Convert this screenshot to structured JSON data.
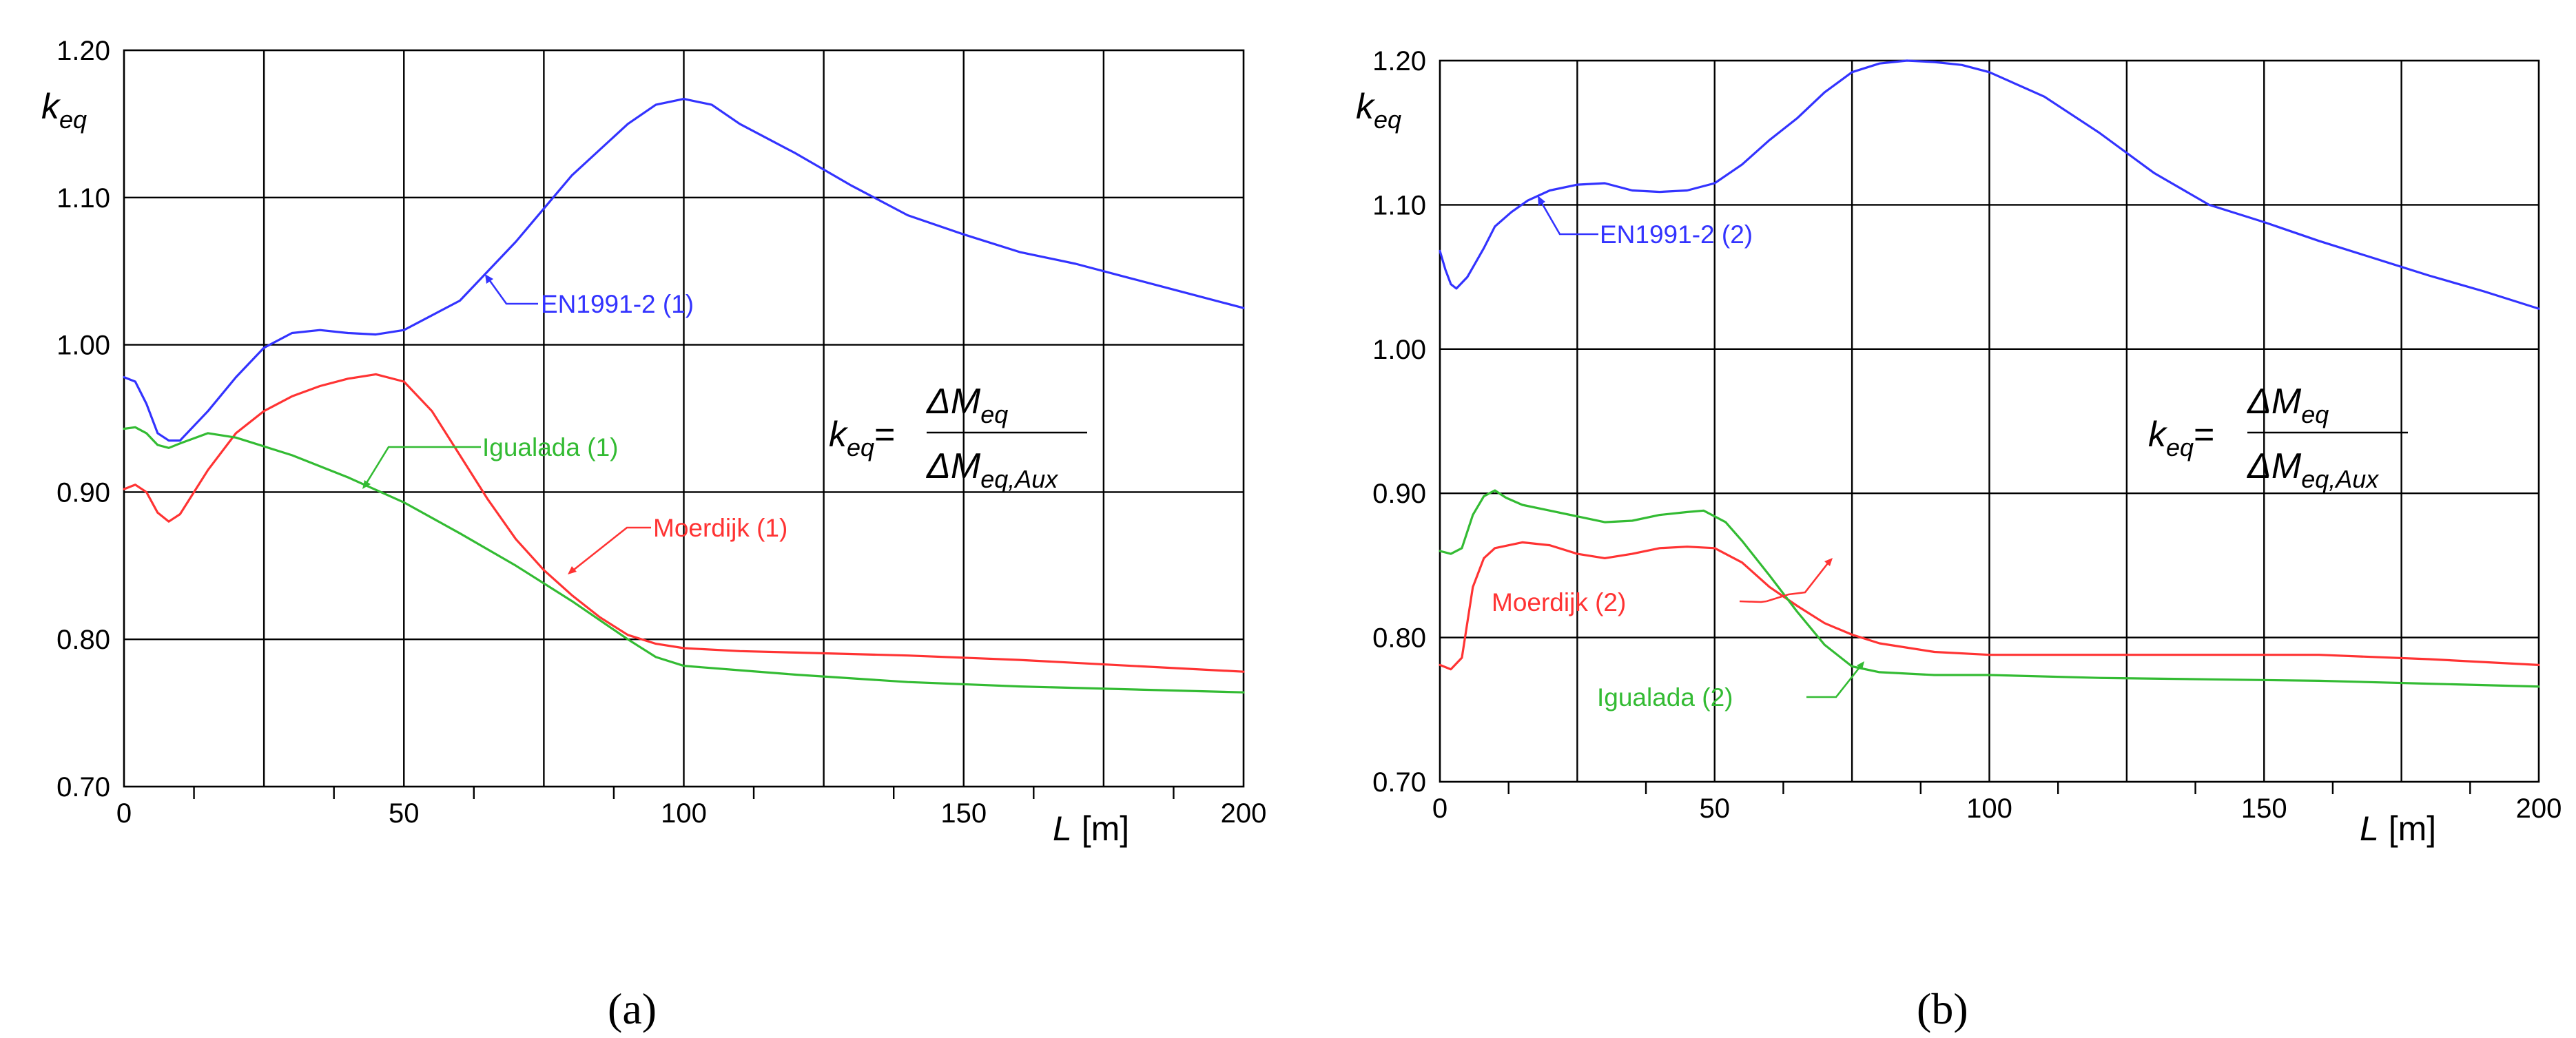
{
  "chart_data": [
    {
      "panel": "(a)",
      "type": "line",
      "ylabel": "k_eq",
      "xlabel": "L [m]",
      "xlim": [
        0,
        200
      ],
      "ylim": [
        0.7,
        1.2
      ],
      "xticks": [
        0,
        50,
        100,
        150,
        200
      ],
      "yticks": [
        "0.70",
        "0.80",
        "0.90",
        "1.00",
        "1.10",
        "1.20"
      ],
      "grid": true,
      "formula": {
        "lhs": "k",
        "lhs_sub": "eq",
        "num": "ΔM",
        "num_sub": "eq",
        "den": "ΔM",
        "den_sub": "eq,Aux"
      },
      "series": [
        {
          "name": "EN1991-2 (1)",
          "color": "#3333ff",
          "x": [
            0,
            2,
            4,
            6,
            8,
            10,
            15,
            20,
            25,
            30,
            35,
            40,
            45,
            50,
            60,
            70,
            80,
            90,
            95,
            100,
            105,
            110,
            120,
            130,
            140,
            150,
            160,
            170,
            180,
            190,
            200
          ],
          "y": [
            0.978,
            0.975,
            0.96,
            0.94,
            0.935,
            0.935,
            0.955,
            0.978,
            0.998,
            1.008,
            1.01,
            1.008,
            1.007,
            1.01,
            1.03,
            1.07,
            1.115,
            1.15,
            1.163,
            1.167,
            1.163,
            1.15,
            1.13,
            1.108,
            1.088,
            1.075,
            1.063,
            1.055,
            1.045,
            1.035,
            1.025
          ]
        },
        {
          "name": "Moerdijk (1)",
          "color": "#ff3333",
          "x": [
            0,
            2,
            4,
            6,
            8,
            10,
            15,
            20,
            25,
            30,
            35,
            40,
            45,
            50,
            55,
            60,
            65,
            70,
            75,
            80,
            85,
            90,
            95,
            100,
            110,
            120,
            140,
            160,
            180,
            200
          ],
          "y": [
            0.902,
            0.905,
            0.9,
            0.886,
            0.88,
            0.885,
            0.915,
            0.94,
            0.955,
            0.965,
            0.972,
            0.977,
            0.98,
            0.975,
            0.955,
            0.925,
            0.895,
            0.868,
            0.847,
            0.83,
            0.815,
            0.803,
            0.797,
            0.794,
            0.792,
            0.791,
            0.789,
            0.786,
            0.782,
            0.778
          ]
        },
        {
          "name": "Igualada (1)",
          "color": "#33bb33",
          "x": [
            0,
            2,
            4,
            6,
            8,
            10,
            15,
            20,
            30,
            40,
            50,
            60,
            70,
            80,
            90,
            95,
            100,
            110,
            120,
            140,
            160,
            180,
            200
          ],
          "y": [
            0.943,
            0.944,
            0.94,
            0.932,
            0.93,
            0.933,
            0.94,
            0.937,
            0.925,
            0.91,
            0.893,
            0.872,
            0.85,
            0.826,
            0.8,
            0.788,
            0.782,
            0.779,
            0.776,
            0.771,
            0.768,
            0.766,
            0.764
          ]
        }
      ],
      "annotations": [
        "EN1991-2 (1)",
        "Igualada (1)",
        "Moerdijk (1)"
      ]
    },
    {
      "panel": "(b)",
      "type": "line",
      "ylabel": "k_eq",
      "xlabel": "L [m]",
      "xlim": [
        0,
        200
      ],
      "ylim": [
        0.7,
        1.2
      ],
      "xticks": [
        0,
        50,
        100,
        150,
        200
      ],
      "yticks": [
        "0.70",
        "0.80",
        "0.90",
        "1.00",
        "1.10",
        "1.20"
      ],
      "grid": true,
      "formula": {
        "lhs": "k",
        "lhs_sub": "eq",
        "num": "ΔM",
        "num_sub": "eq",
        "den": "ΔM",
        "den_sub": "eq,Aux"
      },
      "series": [
        {
          "name": "EN1991-2 (2)",
          "color": "#3333ff",
          "x": [
            0,
            1,
            2,
            3,
            5,
            8,
            10,
            13,
            16,
            20,
            25,
            30,
            35,
            40,
            45,
            50,
            55,
            60,
            65,
            70,
            75,
            80,
            85,
            90,
            95,
            100,
            110,
            120,
            130,
            140,
            150,
            160,
            170,
            180,
            190,
            200
          ],
          "y": [
            1.068,
            1.055,
            1.045,
            1.042,
            1.05,
            1.07,
            1.085,
            1.095,
            1.103,
            1.11,
            1.114,
            1.115,
            1.11,
            1.109,
            1.11,
            1.115,
            1.128,
            1.145,
            1.16,
            1.178,
            1.192,
            1.198,
            1.2,
            1.199,
            1.197,
            1.192,
            1.175,
            1.15,
            1.122,
            1.1,
            1.088,
            1.075,
            1.063,
            1.051,
            1.04,
            1.028
          ]
        },
        {
          "name": "Moerdijk (2)",
          "color": "#ff3333",
          "x": [
            0,
            2,
            4,
            6,
            8,
            10,
            15,
            20,
            25,
            30,
            35,
            40,
            45,
            50,
            55,
            60,
            65,
            70,
            75,
            80,
            90,
            100,
            120,
            140,
            160,
            180,
            200
          ],
          "y": [
            0.781,
            0.778,
            0.786,
            0.835,
            0.855,
            0.862,
            0.866,
            0.864,
            0.858,
            0.855,
            0.858,
            0.862,
            0.863,
            0.862,
            0.852,
            0.835,
            0.822,
            0.81,
            0.802,
            0.796,
            0.79,
            0.788,
            0.788,
            0.788,
            0.788,
            0.785,
            0.781
          ]
        },
        {
          "name": "Igualada (2)",
          "color": "#33bb33",
          "x": [
            0,
            2,
            4,
            6,
            8,
            10,
            12,
            15,
            20,
            25,
            30,
            35,
            40,
            45,
            48,
            52,
            55,
            60,
            65,
            70,
            75,
            80,
            90,
            100,
            120,
            140,
            160,
            180,
            200
          ],
          "y": [
            0.86,
            0.858,
            0.862,
            0.885,
            0.898,
            0.902,
            0.897,
            0.892,
            0.888,
            0.884,
            0.88,
            0.881,
            0.885,
            0.887,
            0.888,
            0.88,
            0.867,
            0.843,
            0.818,
            0.795,
            0.78,
            0.776,
            0.774,
            0.774,
            0.772,
            0.771,
            0.77,
            0.768,
            0.766
          ]
        }
      ],
      "annotations": [
        "EN1991-2 (2)",
        "Moerdijk (2)",
        "Igualada (2)"
      ]
    }
  ]
}
